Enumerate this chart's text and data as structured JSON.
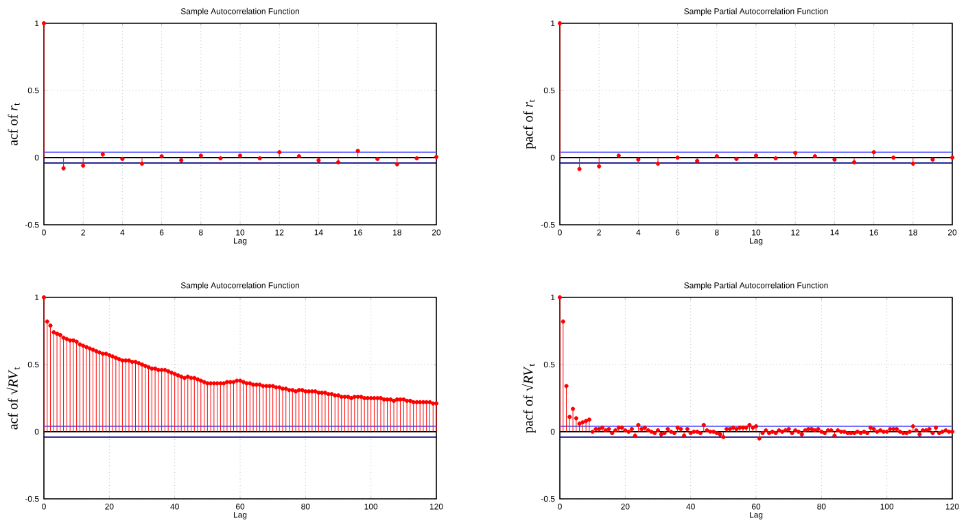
{
  "chart_data": [
    {
      "type": "lollipop",
      "title": "Sample Autocorrelation Function",
      "xlabel": "Lag",
      "ylabel": "acf of *r*$_{t}$",
      "color": "#ff0000",
      "marker": "circle",
      "grid": true,
      "x": [
        0,
        1,
        2,
        3,
        4,
        5,
        6,
        7,
        8,
        9,
        10,
        11,
        12,
        13,
        14,
        15,
        16,
        17,
        18,
        19,
        20
      ],
      "values": [
        1,
        -0.08,
        -0.06,
        0.025,
        -0.01,
        -0.045,
        0.01,
        -0.02,
        0.015,
        -0.005,
        0.015,
        -0.005,
        0.04,
        0.01,
        -0.02,
        -0.035,
        0.05,
        -0.01,
        -0.05,
        -0.005,
        0.005
      ],
      "xlim": [
        0,
        20
      ],
      "xticks": [
        0,
        2,
        4,
        6,
        8,
        10,
        12,
        14,
        16,
        18,
        20
      ],
      "ylim": [
        -0.5,
        1
      ],
      "yticks": [
        -0.5,
        0,
        0.5,
        1
      ],
      "ref_lines": [
        {
          "axis": "y",
          "value": 0,
          "color": "#000000"
        },
        {
          "axis": "y",
          "value": 0.04,
          "color": "#6f6fff"
        },
        {
          "axis": "y",
          "value": -0.04,
          "color": "#000080"
        }
      ]
    },
    {
      "type": "lollipop",
      "title": "Sample Partial Autocorrelation Function",
      "xlabel": "Lag",
      "ylabel": "pacf of *r*$_{t}$",
      "color": "#ff0000",
      "marker": "circle",
      "grid": true,
      "x": [
        0,
        1,
        2,
        3,
        4,
        5,
        6,
        7,
        8,
        9,
        10,
        11,
        12,
        13,
        14,
        15,
        16,
        17,
        18,
        19,
        20
      ],
      "values": [
        1,
        -0.085,
        -0.065,
        0.015,
        -0.015,
        -0.045,
        0.0,
        -0.025,
        0.01,
        -0.01,
        0.015,
        -0.005,
        0.035,
        0.01,
        -0.015,
        -0.035,
        0.04,
        0.0,
        -0.045,
        -0.015,
        0.0
      ],
      "xlim": [
        0,
        20
      ],
      "xticks": [
        0,
        2,
        4,
        6,
        8,
        10,
        12,
        14,
        16,
        18,
        20
      ],
      "ylim": [
        -0.5,
        1
      ],
      "yticks": [
        -0.5,
        0,
        0.5,
        1
      ],
      "ref_lines": [
        {
          "axis": "y",
          "value": 0,
          "color": "#000000"
        },
        {
          "axis": "y",
          "value": 0.04,
          "color": "#6f6fff"
        },
        {
          "axis": "y",
          "value": -0.04,
          "color": "#000080"
        }
      ]
    },
    {
      "type": "lollipop",
      "title": "Sample Autocorrelation Function",
      "xlabel": "Lag",
      "ylabel": "acf of √*RV*$_{t}$",
      "color": "#ff0000",
      "marker": "circle",
      "grid": true,
      "x": [
        0,
        1,
        2,
        3,
        4,
        5,
        6,
        7,
        8,
        9,
        10,
        11,
        12,
        13,
        14,
        15,
        16,
        17,
        18,
        19,
        20,
        21,
        22,
        23,
        24,
        25,
        26,
        27,
        28,
        29,
        30,
        31,
        32,
        33,
        34,
        35,
        36,
        37,
        38,
        39,
        40,
        41,
        42,
        43,
        44,
        45,
        46,
        47,
        48,
        49,
        50,
        51,
        52,
        53,
        54,
        55,
        56,
        57,
        58,
        59,
        60,
        61,
        62,
        63,
        64,
        65,
        66,
        67,
        68,
        69,
        70,
        71,
        72,
        73,
        74,
        75,
        76,
        77,
        78,
        79,
        80,
        81,
        82,
        83,
        84,
        85,
        86,
        87,
        88,
        89,
        90,
        91,
        92,
        93,
        94,
        95,
        96,
        97,
        98,
        99,
        100,
        101,
        102,
        103,
        104,
        105,
        106,
        107,
        108,
        109,
        110,
        111,
        112,
        113,
        114,
        115,
        116,
        117,
        118,
        119,
        120
      ],
      "values": [
        1,
        0.82,
        0.79,
        0.74,
        0.73,
        0.72,
        0.7,
        0.69,
        0.68,
        0.68,
        0.67,
        0.65,
        0.64,
        0.63,
        0.62,
        0.61,
        0.6,
        0.59,
        0.58,
        0.58,
        0.57,
        0.56,
        0.55,
        0.54,
        0.53,
        0.53,
        0.53,
        0.52,
        0.52,
        0.51,
        0.5,
        0.49,
        0.48,
        0.47,
        0.47,
        0.46,
        0.46,
        0.46,
        0.45,
        0.44,
        0.43,
        0.42,
        0.41,
        0.4,
        0.41,
        0.4,
        0.4,
        0.39,
        0.38,
        0.37,
        0.36,
        0.36,
        0.36,
        0.36,
        0.36,
        0.36,
        0.37,
        0.37,
        0.37,
        0.38,
        0.38,
        0.37,
        0.36,
        0.36,
        0.35,
        0.35,
        0.35,
        0.34,
        0.34,
        0.34,
        0.34,
        0.33,
        0.33,
        0.32,
        0.32,
        0.31,
        0.31,
        0.3,
        0.31,
        0.31,
        0.3,
        0.3,
        0.3,
        0.3,
        0.29,
        0.29,
        0.29,
        0.28,
        0.28,
        0.27,
        0.27,
        0.26,
        0.26,
        0.26,
        0.25,
        0.26,
        0.26,
        0.26,
        0.25,
        0.25,
        0.25,
        0.25,
        0.25,
        0.25,
        0.24,
        0.24,
        0.24,
        0.23,
        0.24,
        0.24,
        0.24,
        0.23,
        0.23,
        0.22,
        0.22,
        0.22,
        0.22,
        0.22,
        0.22,
        0.21,
        0.21
      ],
      "xlim": [
        0,
        120
      ],
      "xticks": [
        0,
        20,
        40,
        60,
        80,
        100,
        120
      ],
      "ylim": [
        -0.5,
        1
      ],
      "yticks": [
        -0.5,
        0,
        0.5,
        1
      ],
      "ref_lines": [
        {
          "axis": "y",
          "value": 0,
          "color": "#000000"
        },
        {
          "axis": "y",
          "value": 0.04,
          "color": "#6f6fff"
        },
        {
          "axis": "y",
          "value": -0.04,
          "color": "#000080"
        }
      ]
    },
    {
      "type": "lollipop",
      "title": "Sample Partial Autocorrelation Function",
      "xlabel": "Lag",
      "ylabel": "pacf of √*RV*$_{t}$",
      "color": "#ff0000",
      "marker": "circle",
      "grid": true,
      "x": [
        0,
        1,
        2,
        3,
        4,
        5,
        6,
        7,
        8,
        9,
        10,
        11,
        12,
        13,
        14,
        15,
        16,
        17,
        18,
        19,
        20,
        21,
        22,
        23,
        24,
        25,
        26,
        27,
        28,
        29,
        30,
        31,
        32,
        33,
        34,
        35,
        36,
        37,
        38,
        39,
        40,
        41,
        42,
        43,
        44,
        45,
        46,
        47,
        48,
        49,
        50,
        51,
        52,
        53,
        54,
        55,
        56,
        57,
        58,
        59,
        60,
        61,
        62,
        63,
        64,
        65,
        66,
        67,
        68,
        69,
        70,
        71,
        72,
        73,
        74,
        75,
        76,
        77,
        78,
        79,
        80,
        81,
        82,
        83,
        84,
        85,
        86,
        87,
        88,
        89,
        90,
        91,
        92,
        93,
        94,
        95,
        96,
        97,
        98,
        99,
        100,
        101,
        102,
        103,
        104,
        105,
        106,
        107,
        108,
        109,
        110,
        111,
        112,
        113,
        114,
        115,
        116,
        117,
        118,
        119,
        120
      ],
      "values": [
        1,
        0.82,
        0.34,
        0.11,
        0.17,
        0.1,
        0.06,
        0.07,
        0.08,
        0.09,
        0.0,
        0.02,
        0.02,
        0.03,
        0.01,
        0.02,
        -0.01,
        0.01,
        0.03,
        0.03,
        0.01,
        0.0,
        0.02,
        -0.03,
        0.05,
        0.02,
        0.03,
        0.01,
        0.0,
        -0.01,
        0.01,
        -0.02,
        -0.01,
        0.02,
        0.0,
        -0.01,
        0.03,
        0.02,
        -0.03,
        0.02,
        -0.01,
        0.0,
        0.0,
        -0.01,
        0.05,
        0.01,
        0.0,
        0.0,
        -0.01,
        -0.02,
        -0.04,
        0.02,
        0.02,
        0.03,
        0.02,
        0.03,
        0.03,
        0.03,
        0.05,
        0.03,
        0.04,
        -0.05,
        -0.01,
        0.01,
        -0.01,
        0.0,
        -0.01,
        0.01,
        0.0,
        0.01,
        0.02,
        -0.01,
        0.01,
        0.0,
        -0.02,
        0.01,
        0.02,
        0.02,
        0.01,
        0.02,
        0.0,
        -0.01,
        0.01,
        0.01,
        -0.03,
        0.01,
        0.0,
        0.0,
        -0.01,
        -0.01,
        -0.01,
        0.0,
        -0.01,
        0.0,
        -0.01,
        0.03,
        0.02,
        0.0,
        0.01,
        0.0,
        0.0,
        0.02,
        0.02,
        0.02,
        0.0,
        -0.01,
        -0.01,
        0.0,
        0.04,
        0.01,
        -0.02,
        0.01,
        0.01,
        0.02,
        -0.01,
        0.03,
        -0.01,
        0.0,
        0.01,
        0.0,
        0.0
      ],
      "xlim": [
        0,
        120
      ],
      "xticks": [
        0,
        20,
        40,
        60,
        80,
        100,
        120
      ],
      "ylim": [
        -0.5,
        1
      ],
      "yticks": [
        -0.5,
        0,
        0.5,
        1
      ],
      "ref_lines": [
        {
          "axis": "y",
          "value": 0,
          "color": "#000000"
        },
        {
          "axis": "y",
          "value": 0.04,
          "color": "#6f6fff"
        },
        {
          "axis": "y",
          "value": -0.04,
          "color": "#000080"
        }
      ]
    }
  ]
}
